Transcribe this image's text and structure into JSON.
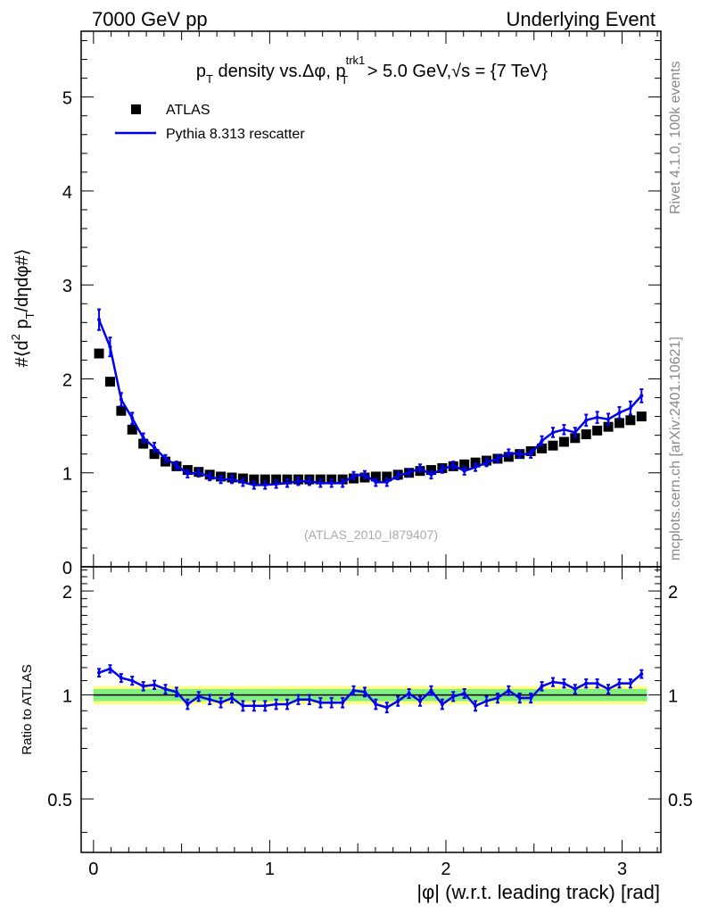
{
  "header": {
    "left": "7000 GeV pp",
    "right": "Underlying Event"
  },
  "side": {
    "rivet": "Rivet 4.1.0,  100k events",
    "mcplots": "mcplots.cern.ch [arXiv:2401.10621]"
  },
  "colors": {
    "data": "#000000",
    "mc": "#0000ee",
    "band_inner": "#7ff07f",
    "band_outer": "#ffff80"
  },
  "chart_data": [
    {
      "type": "scatter",
      "panel": "main",
      "title": "p_T density vs. Δφ, p_T^trk1 > 5.0 GeV, √s = {7 TeV}",
      "title_parts": {
        "p": "p",
        "T": "T",
        "mid": " density vs.Δφ, p",
        "sup": "trk1",
        "gt": " > 5.0 GeV,",
        "sqrt": "√",
        "s": "s = {7 TeV}"
      },
      "ylabel": "#⟨d² p_T/dηdφ#⟩",
      "ylabel_parts": {
        "pre": "#⟨d",
        "two": "2",
        "p": " p",
        "T": "T",
        "post": "/dηdφ#⟩"
      },
      "xlabel": "|φ| (w.r.t. leading track) [rad]",
      "xlim": [
        -0.07,
        3.22
      ],
      "ylim": [
        0,
        5.7
      ],
      "yticks": [
        0,
        1,
        2,
        3,
        4,
        5
      ],
      "ytick_labels": [
        "0",
        "1",
        "2",
        "3",
        "4",
        "5"
      ],
      "xticks": [
        0,
        1,
        2,
        3
      ],
      "xtick_labels": [
        "0",
        "1",
        "2",
        "3"
      ],
      "legend": [
        "ATLAS",
        "Pythia 8.313 rescatter"
      ],
      "watermark": "(ATLAS_2010_I879407)",
      "x": [
        0.0314,
        0.0942,
        0.1571,
        0.2199,
        0.2827,
        0.3456,
        0.4084,
        0.4712,
        0.5341,
        0.5969,
        0.6597,
        0.7226,
        0.7854,
        0.8482,
        0.9111,
        0.9739,
        1.0367,
        1.0996,
        1.1624,
        1.2252,
        1.2881,
        1.3509,
        1.4137,
        1.4765,
        1.5394,
        1.6022,
        1.665,
        1.7279,
        1.7907,
        1.8535,
        1.9164,
        1.9792,
        2.042,
        2.1049,
        2.1677,
        2.2305,
        2.2934,
        2.3562,
        2.419,
        2.4819,
        2.5447,
        2.6075,
        2.6704,
        2.7332,
        2.796,
        2.8588,
        2.9217,
        2.9845,
        3.0473,
        3.1102
      ],
      "series": [
        {
          "name": "ATLAS",
          "values": [
            2.27,
            1.97,
            1.66,
            1.46,
            1.31,
            1.2,
            1.12,
            1.07,
            1.03,
            1.01,
            0.98,
            0.96,
            0.95,
            0.94,
            0.93,
            0.93,
            0.93,
            0.93,
            0.93,
            0.93,
            0.93,
            0.93,
            0.93,
            0.94,
            0.95,
            0.96,
            0.96,
            0.98,
            1.0,
            1.02,
            1.03,
            1.05,
            1.07,
            1.09,
            1.11,
            1.13,
            1.15,
            1.17,
            1.2,
            1.23,
            1.26,
            1.29,
            1.33,
            1.37,
            1.41,
            1.45,
            1.49,
            1.53,
            1.56,
            1.6
          ]
        },
        {
          "name": "Pythia 8.313 rescatter",
          "values": [
            2.63,
            2.34,
            1.78,
            1.58,
            1.37,
            1.27,
            1.15,
            1.08,
            0.99,
            1.0,
            0.96,
            0.93,
            0.93,
            0.9,
            0.87,
            0.87,
            0.88,
            0.89,
            0.91,
            0.91,
            0.89,
            0.89,
            0.89,
            0.97,
            0.98,
            0.9,
            0.9,
            0.97,
            1.0,
            1.05,
            0.98,
            1.04,
            1.08,
            1.02,
            1.06,
            1.11,
            1.15,
            1.21,
            1.2,
            1.2,
            1.34,
            1.43,
            1.46,
            1.43,
            1.56,
            1.59,
            1.57,
            1.64,
            1.69,
            1.82
          ],
          "errors": [
            0.11,
            0.1,
            0.07,
            0.06,
            0.05,
            0.05,
            0.04,
            0.04,
            0.04,
            0.04,
            0.04,
            0.04,
            0.04,
            0.04,
            0.04,
            0.04,
            0.04,
            0.04,
            0.04,
            0.04,
            0.04,
            0.04,
            0.04,
            0.04,
            0.04,
            0.04,
            0.04,
            0.04,
            0.04,
            0.04,
            0.04,
            0.04,
            0.04,
            0.04,
            0.04,
            0.04,
            0.04,
            0.04,
            0.04,
            0.04,
            0.05,
            0.05,
            0.05,
            0.05,
            0.06,
            0.06,
            0.06,
            0.06,
            0.07,
            0.07
          ]
        }
      ]
    },
    {
      "type": "line",
      "panel": "ratio",
      "ylabel": "Ratio to ATLAS",
      "ylim": [
        0.35,
        2.35
      ],
      "yticks": [
        0.5,
        1,
        2
      ],
      "ytick_labels": [
        "0.5",
        "1",
        "2"
      ],
      "band_inner": [
        0.96,
        1.04
      ],
      "band_outer": [
        0.94,
        1.06
      ],
      "series": [
        {
          "name": "Pythia 8.313 rescatter / ATLAS",
          "values": [
            1.16,
            1.19,
            1.12,
            1.1,
            1.06,
            1.07,
            1.04,
            1.02,
            0.94,
            0.99,
            0.97,
            0.95,
            0.98,
            0.93,
            0.93,
            0.93,
            0.94,
            0.94,
            0.97,
            0.97,
            0.95,
            0.95,
            0.95,
            1.03,
            1.02,
            0.94,
            0.92,
            0.96,
            1.01,
            0.96,
            1.03,
            0.94,
            0.99,
            1.01,
            0.93,
            0.96,
            0.98,
            1.03,
            0.98,
            0.98,
            1.06,
            1.09,
            1.08,
            1.04,
            1.08,
            1.08,
            1.04,
            1.08,
            1.08,
            1.15
          ],
          "errors": [
            0.03,
            0.03,
            0.03,
            0.03,
            0.03,
            0.03,
            0.03,
            0.03,
            0.03,
            0.03,
            0.03,
            0.03,
            0.03,
            0.03,
            0.03,
            0.03,
            0.03,
            0.03,
            0.03,
            0.03,
            0.03,
            0.03,
            0.03,
            0.03,
            0.03,
            0.03,
            0.03,
            0.03,
            0.03,
            0.03,
            0.03,
            0.03,
            0.03,
            0.03,
            0.03,
            0.03,
            0.03,
            0.03,
            0.03,
            0.03,
            0.03,
            0.03,
            0.03,
            0.03,
            0.03,
            0.03,
            0.03,
            0.03,
            0.03,
            0.03
          ]
        }
      ]
    }
  ]
}
